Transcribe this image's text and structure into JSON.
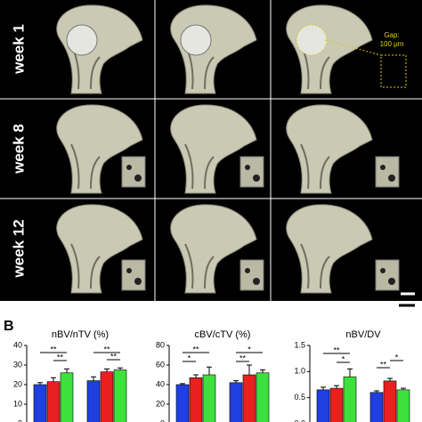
{
  "panel_label": "B",
  "rows": [
    "week 1",
    "week 8",
    "week 12"
  ],
  "inset_annotation": [
    "Gap:",
    "100 μm"
  ],
  "chart_data": [
    {
      "type": "bar",
      "title": "nBV/nTV (%)",
      "ylim": [
        0,
        40
      ],
      "yticks": [
        0,
        10,
        20,
        30,
        40
      ],
      "series": [
        {
          "color": "#1f3fe0",
          "values": [
            20,
            22
          ],
          "errors": [
            1,
            2
          ]
        },
        {
          "color": "#e82020",
          "values": [
            21.5,
            26.5
          ],
          "errors": [
            2,
            1.5
          ]
        },
        {
          "color": "#3ee03e",
          "values": [
            26,
            27.5
          ],
          "errors": [
            2,
            1
          ]
        }
      ],
      "annotations": [
        "**",
        "**",
        "**",
        "**"
      ]
    },
    {
      "type": "bar",
      "title": "cBV/cTV (%)",
      "ylim": [
        0,
        80
      ],
      "yticks": [
        0,
        20,
        40,
        60,
        80
      ],
      "series": [
        {
          "color": "#1f3fe0",
          "values": [
            40,
            42
          ],
          "errors": [
            1,
            2
          ]
        },
        {
          "color": "#e82020",
          "values": [
            47,
            50
          ],
          "errors": [
            3,
            10
          ]
        },
        {
          "color": "#3ee03e",
          "values": [
            50,
            52
          ],
          "errors": [
            8,
            3
          ]
        }
      ],
      "annotations": [
        "**",
        "*",
        "*",
        "**"
      ]
    },
    {
      "type": "bar",
      "title": "nBV/DV",
      "ylim": [
        0,
        1.5
      ],
      "yticks": [
        {
          "value": 0,
          "label": "0.0"
        },
        0.5,
        {
          "value": 1,
          "label": "1.0"
        },
        1.5
      ],
      "series": [
        {
          "color": "#1f3fe0",
          "values": [
            0.65,
            0.6
          ],
          "errors": [
            0.05,
            0.03
          ]
        },
        {
          "color": "#e82020",
          "values": [
            0.68,
            0.82
          ],
          "errors": [
            0.05,
            0.05
          ]
        },
        {
          "color": "#3ee03e",
          "values": [
            0.9,
            0.65
          ],
          "errors": [
            0.15,
            0.03
          ]
        }
      ],
      "annotations": [
        "**",
        "*",
        "**",
        "*"
      ]
    }
  ]
}
